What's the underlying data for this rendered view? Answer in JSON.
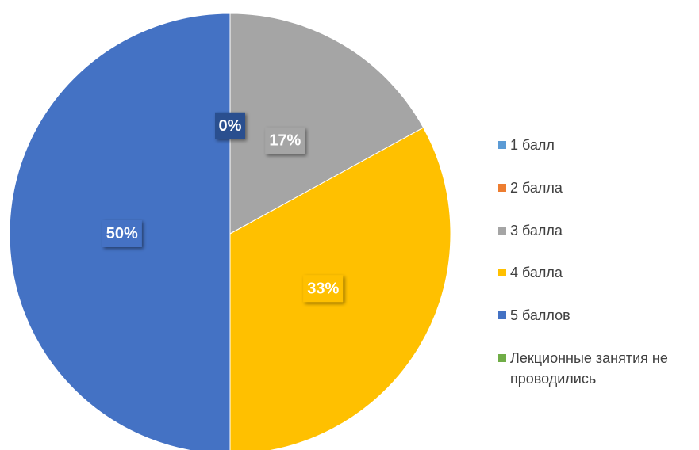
{
  "chart_data": {
    "type": "pie",
    "categories": [
      "1 балл",
      "2 балла",
      "3 балла",
      "4 балла",
      "5 баллов",
      "Лекционные занятия не проводились"
    ],
    "values": [
      0,
      0,
      17,
      33,
      50,
      0
    ],
    "value_labels": [
      "0%",
      null,
      "17%",
      "33%",
      "50%",
      null
    ],
    "colors": [
      "#5b9bd5",
      "#ed7d31",
      "#a5a5a5",
      "#ffc000",
      "#4472c4",
      "#70ad47"
    ],
    "legend": "right"
  }
}
